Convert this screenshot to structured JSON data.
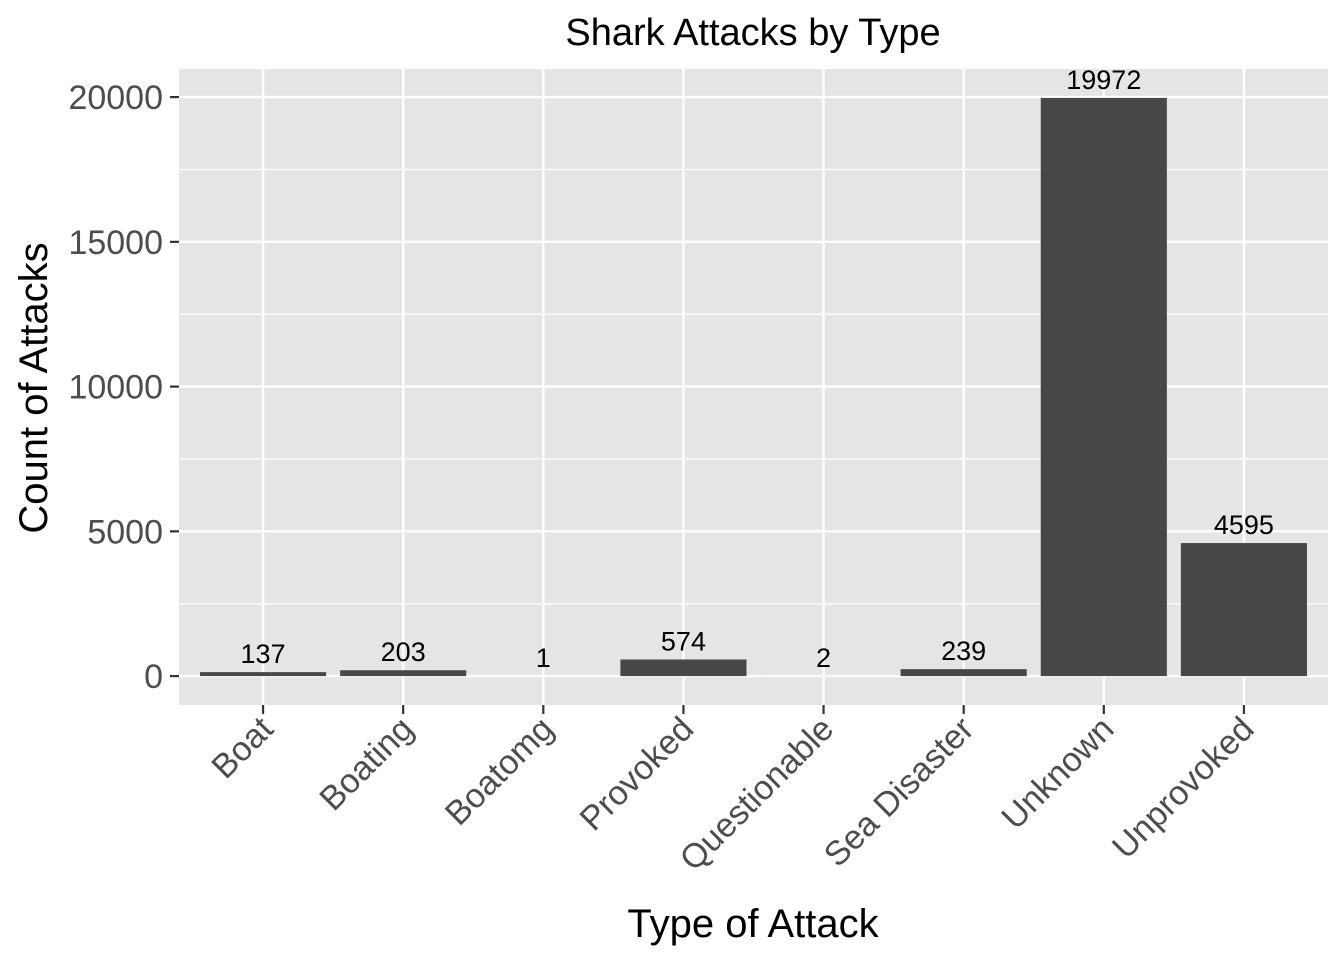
{
  "chart_data": {
    "type": "bar",
    "title": "Shark Attacks by Type",
    "xlabel": "Type of Attack",
    "ylabel": "Count of Attacks",
    "categories": [
      "Boat",
      "Boating",
      "Boatomg",
      "Provoked",
      "Questionable",
      "Sea Disaster",
      "Unknown",
      "Unprovoked"
    ],
    "values": [
      137,
      203,
      1,
      574,
      2,
      239,
      19972,
      4595
    ],
    "data_labels": [
      "137",
      "203",
      "1",
      "574",
      "2",
      "239",
      "19972",
      "4595"
    ],
    "ylim": [
      -998.6,
      20970.6
    ],
    "yticks": [
      0,
      5000,
      10000,
      15000,
      20000
    ],
    "ytick_labels": [
      "0",
      "5000",
      "10000",
      "15000",
      "20000"
    ],
    "grid": true,
    "legend": "none",
    "colors": {
      "bar": "#474747",
      "panel_background": "#e5e5e5",
      "grid": "#ffffff",
      "tick_text": "#4d4d4d",
      "text": "#000000"
    }
  }
}
